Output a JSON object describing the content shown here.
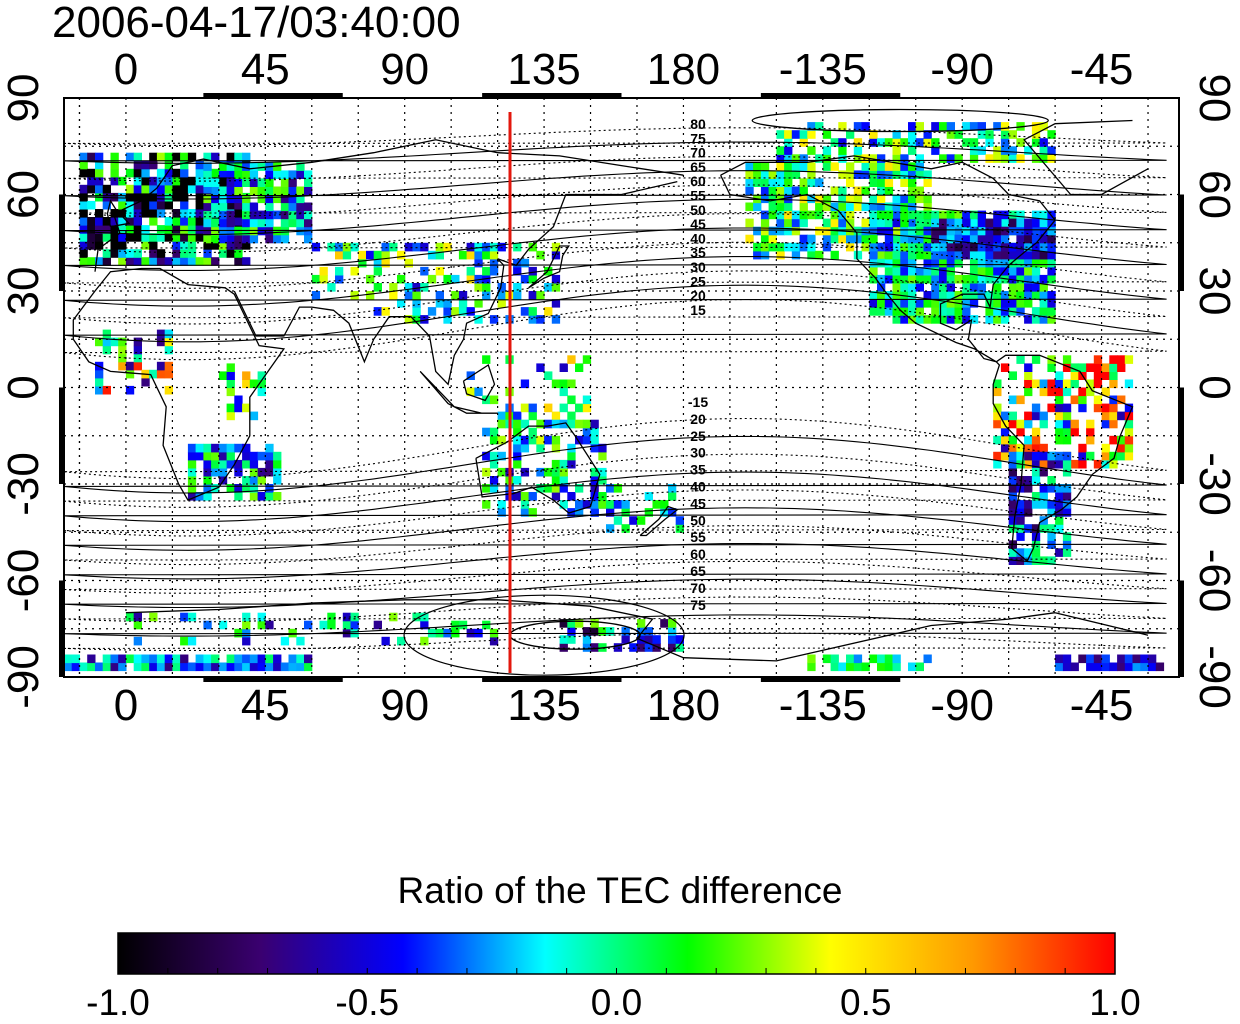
{
  "title": "2006-04-17/03:40:00",
  "map": {
    "lon_ticks": [
      "0",
      "45",
      "90",
      "135",
      "180",
      "-135",
      "-90",
      "-45"
    ],
    "lat_ticks": [
      "90",
      "60",
      "30",
      "0",
      "-30",
      "-60",
      "-90"
    ],
    "terminator_longitude": 124,
    "terminator_color": "#e3170d",
    "contour_labels_north": [
      "80",
      "75",
      "70",
      "65",
      "60",
      "55",
      "50",
      "45",
      "40",
      "35",
      "30",
      "25",
      "20",
      "15"
    ],
    "contour_labels_south": [
      "-15",
      "20",
      "25",
      "30",
      "35",
      "40",
      "45",
      "50",
      "55",
      "60",
      "65",
      "70",
      "75"
    ]
  },
  "colorbar": {
    "title": "Ratio of the TEC difference",
    "tick_labels": [
      "-1.0",
      "-0.5",
      "0.0",
      "0.5",
      "1.0"
    ],
    "colors": [
      "#000000",
      "#3a0070",
      "#0000ff",
      "#00ffff",
      "#00ff00",
      "#ffff00",
      "#ff9900",
      "#ff0000"
    ]
  }
}
